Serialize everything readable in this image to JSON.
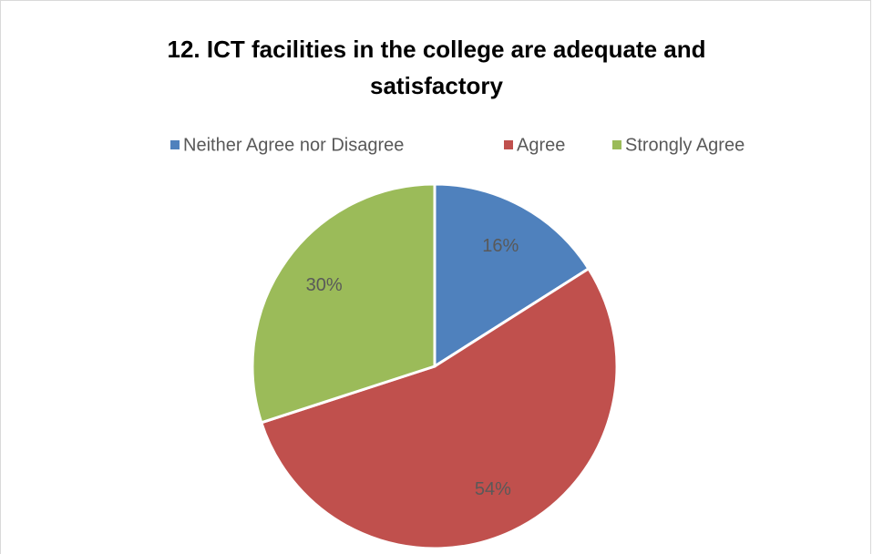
{
  "chart_data": {
    "type": "pie",
    "title": "12. ICT facilities in the college are adequate and satisfactory",
    "categories": [
      "Neither Agree nor Disagree",
      "Agree",
      "Strongly Agree"
    ],
    "values": [
      16,
      54,
      30
    ],
    "value_labels": [
      "16%",
      "54%",
      "30%"
    ],
    "colors": [
      "#4f81bd",
      "#c0504d",
      "#9bbb59"
    ],
    "legend": "top"
  }
}
